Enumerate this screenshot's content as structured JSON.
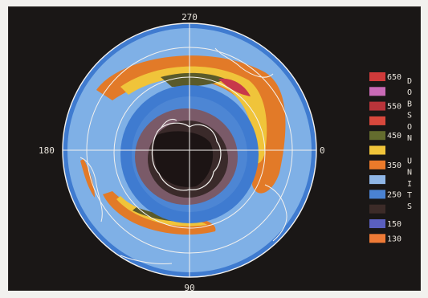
{
  "map": {
    "labels": {
      "top": "270",
      "bottom": "90",
      "left": "180",
      "right": "0"
    }
  },
  "legend": {
    "title_letters": [
      "D",
      "O",
      "B",
      "S",
      "O",
      "N",
      "",
      "U",
      "N",
      "I",
      "T",
      "S"
    ],
    "swatches": [
      {
        "color": "#cf3a3a"
      },
      {
        "color": "#c96ab6"
      },
      {
        "color": "#b8343a"
      },
      {
        "color": "#d8483c"
      },
      {
        "color": "#646c2e"
      },
      {
        "color": "#f0c43a"
      },
      {
        "color": "#eb7a2a"
      },
      {
        "color": "#8fb6e6"
      },
      {
        "color": "#4a82d2"
      },
      {
        "color": "#3c2b28"
      },
      {
        "color": "#5a5fbf"
      },
      {
        "color": "#ee7a36"
      }
    ],
    "ticks": [
      "650",
      "550",
      "450",
      "350",
      "250",
      "150",
      "130"
    ]
  }
}
